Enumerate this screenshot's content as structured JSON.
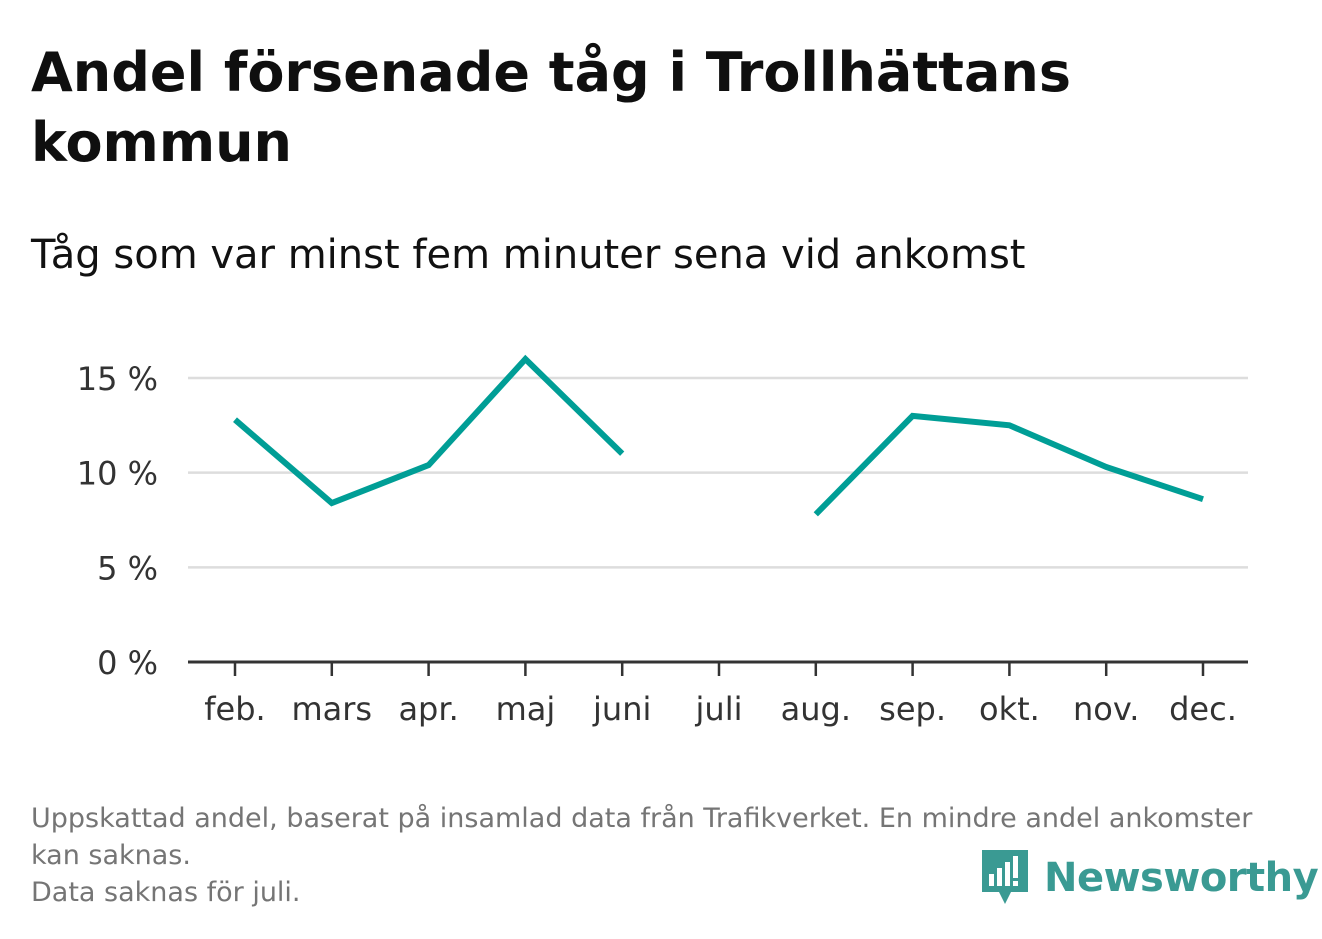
{
  "title": "Andel försenade tåg i Trollhättans kommun",
  "subtitle": "Tåg som var minst fem minuter sena vid ankomst",
  "footer": {
    "line1": "Uppskattad andel, baserat på insamlad data från Trafikverket. En mindre andel ankomster kan saknas.",
    "line2": "Data saknas för juli."
  },
  "brand": {
    "name": "Newsworthy",
    "color": "#3a9a93",
    "icon": "newsworthy-logo-icon"
  },
  "chart_data": {
    "type": "line",
    "categories": [
      "feb.",
      "mars",
      "apr.",
      "maj",
      "juni",
      "juli",
      "aug.",
      "sep.",
      "okt.",
      "nov.",
      "dec."
    ],
    "series": [
      {
        "values": [
          12.8,
          8.4,
          10.4,
          16.0,
          11.0,
          null,
          7.8,
          13.0,
          12.5,
          10.3,
          8.6
        ],
        "color": "#009e96"
      }
    ],
    "y_ticks": [
      0,
      5,
      10,
      15
    ],
    "y_tick_labels": [
      "0 %",
      "5 %",
      "10 %",
      "15 %"
    ],
    "ylim": [
      0,
      16
    ],
    "grid": true,
    "legend": "none"
  }
}
